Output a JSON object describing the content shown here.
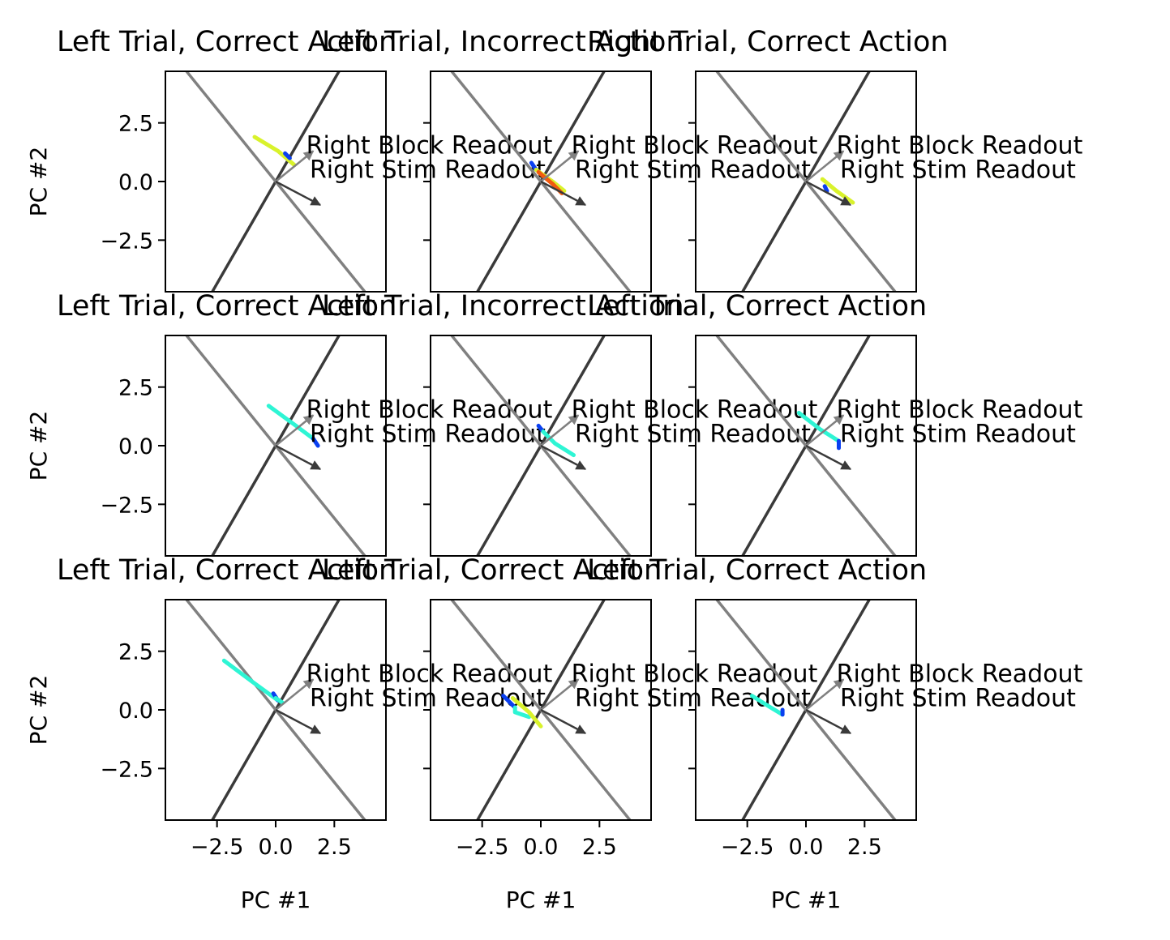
{
  "chart_data": {
    "type": "line",
    "layout": "3x3 grid of subplots",
    "xlabel": "PC #1",
    "ylabel": "PC #2",
    "xlim": [
      -4.7,
      4.7
    ],
    "ylim": [
      -4.7,
      4.7
    ],
    "xticks": [
      -2.5,
      0.0,
      2.5
    ],
    "xtick_labels": [
      "−2.5",
      "0.0",
      "2.5"
    ],
    "yticks": [
      -2.5,
      0.0,
      2.5
    ],
    "ytick_labels": [
      "−2.5",
      "0.0",
      "2.5"
    ],
    "grid": false,
    "readout_lines": [
      {
        "color": "#3a3a3a",
        "points": [
          [
            -2.7,
            -4.7
          ],
          [
            2.7,
            4.7
          ]
        ]
      },
      {
        "color": "#808080",
        "points": [
          [
            -3.8,
            4.7
          ],
          [
            3.8,
            -4.7
          ]
        ]
      }
    ],
    "readout_arrows": [
      {
        "label": "Right Block Readout",
        "color": "#808080",
        "from": [
          0.0,
          0.0
        ],
        "to": [
          1.6,
          1.3
        ],
        "label_at": [
          1.3,
          1.2
        ]
      },
      {
        "label": "Right Stim Readout",
        "color": "#3a3a3a",
        "from": [
          0.0,
          0.0
        ],
        "to": [
          1.9,
          -1.0
        ],
        "label_at": [
          1.45,
          0.15
        ]
      }
    ],
    "subplots": [
      {
        "title": "Left Trial, Correct Action",
        "trajectories": [
          {
            "color": "#d9f22b",
            "points": [
              [
                -0.9,
                1.9
              ],
              [
                0.1,
                1.3
              ],
              [
                0.8,
                0.7
              ]
            ]
          },
          {
            "color": "#0a3ff0",
            "points": [
              [
                0.4,
                1.2
              ],
              [
                0.6,
                1.0
              ]
            ]
          }
        ]
      },
      {
        "title": "Left Trial, Incorrect Action",
        "trajectories": [
          {
            "color": "#0a3ff0",
            "points": [
              [
                -0.4,
                0.8
              ],
              [
                -0.2,
                0.5
              ]
            ]
          },
          {
            "color": "#d9f22b",
            "points": [
              [
                -0.2,
                0.5
              ],
              [
                0.5,
                0.0
              ],
              [
                1.0,
                -0.4
              ]
            ]
          },
          {
            "color": "#f25a0f",
            "points": [
              [
                -0.1,
                0.4
              ],
              [
                0.5,
                -0.1
              ],
              [
                0.9,
                -0.5
              ]
            ]
          }
        ]
      },
      {
        "title": "Right Trial, Correct Action",
        "trajectories": [
          {
            "color": "#0a3ff0",
            "points": [
              [
                0.8,
                -0.2
              ],
              [
                0.9,
                -0.4
              ]
            ]
          },
          {
            "color": "#d9f22b",
            "points": [
              [
                0.7,
                0.1
              ],
              [
                1.3,
                -0.4
              ],
              [
                2.0,
                -0.9
              ]
            ]
          }
        ]
      },
      {
        "title": "Left Trial, Correct Action",
        "trajectories": [
          {
            "color": "#2ef5d4",
            "points": [
              [
                -0.3,
                1.7
              ],
              [
                0.8,
                0.9
              ],
              [
                1.6,
                0.3
              ]
            ]
          },
          {
            "color": "#0a3ff0",
            "points": [
              [
                1.6,
                0.3
              ],
              [
                1.8,
                0.0
              ]
            ]
          }
        ]
      },
      {
        "title": "Left Trial, Incorrect Action",
        "trajectories": [
          {
            "color": "#0a3ff0",
            "points": [
              [
                -0.1,
                0.85
              ],
              [
                0.1,
                0.6
              ]
            ]
          },
          {
            "color": "#2ef5d4",
            "points": [
              [
                0.1,
                0.6
              ],
              [
                0.6,
                0.1
              ],
              [
                1.4,
                -0.4
              ]
            ]
          }
        ]
      },
      {
        "title": "Left Trial, Correct Action",
        "trajectories": [
          {
            "color": "#2ef5d4",
            "points": [
              [
                -0.3,
                1.4
              ],
              [
                0.6,
                0.7
              ],
              [
                1.4,
                0.2
              ]
            ]
          },
          {
            "color": "#0a3ff0",
            "points": [
              [
                1.4,
                0.2
              ],
              [
                1.4,
                -0.1
              ]
            ]
          }
        ]
      },
      {
        "title": "Left Trial, Correct Action",
        "trajectories": [
          {
            "color": "#2ef5d4",
            "points": [
              [
                -2.2,
                2.1
              ],
              [
                -1.0,
                1.2
              ],
              [
                0.1,
                0.4
              ]
            ]
          },
          {
            "color": "#0a3ff0",
            "points": [
              [
                -0.1,
                0.7
              ],
              [
                0.1,
                0.4
              ]
            ]
          },
          {
            "color": "#2ef5d4",
            "points": [
              [
                0.0,
                0.5
              ],
              [
                0.3,
                0.3
              ]
            ]
          }
        ]
      },
      {
        "title": "Left Trial, Correct Action",
        "trajectories": [
          {
            "color": "#0a3ff0",
            "points": [
              [
                -1.6,
                0.6
              ],
              [
                -1.1,
                0.1
              ]
            ]
          },
          {
            "color": "#2ef5d4",
            "points": [
              [
                -1.1,
                0.1
              ],
              [
                -1.1,
                -0.1
              ],
              [
                -0.5,
                -0.3
              ]
            ]
          },
          {
            "color": "#d9f22b",
            "points": [
              [
                -1.2,
                0.5
              ],
              [
                -0.5,
                -0.1
              ],
              [
                0.0,
                -0.7
              ]
            ]
          }
        ]
      },
      {
        "title": "Left Trial, Correct Action",
        "trajectories": [
          {
            "color": "#2ef5d4",
            "points": [
              [
                -2.3,
                0.6
              ],
              [
                -1.5,
                0.1
              ],
              [
                -1.0,
                -0.2
              ]
            ]
          },
          {
            "color": "#0a3ff0",
            "points": [
              [
                -1.0,
                0.0
              ],
              [
                -1.0,
                -0.2
              ]
            ]
          }
        ]
      }
    ]
  }
}
